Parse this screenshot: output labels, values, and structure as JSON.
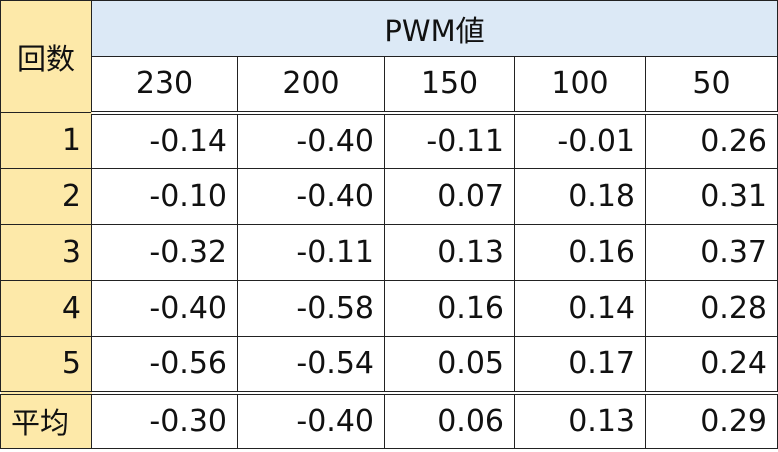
{
  "table": {
    "corner_label": "回数",
    "group_header": "PWM値",
    "columns": [
      "230",
      "200",
      "150",
      "100",
      "50"
    ],
    "rows": [
      {
        "label": "1",
        "values": [
          "-0.14",
          "-0.40",
          "-0.11",
          "-0.01",
          "0.26"
        ]
      },
      {
        "label": "2",
        "values": [
          "-0.10",
          "-0.40",
          "0.07",
          "0.18",
          "0.31"
        ]
      },
      {
        "label": "3",
        "values": [
          "-0.32",
          "-0.11",
          "0.13",
          "0.16",
          "0.37"
        ]
      },
      {
        "label": "4",
        "values": [
          "-0.40",
          "-0.58",
          "0.16",
          "0.14",
          "0.28"
        ]
      },
      {
        "label": "5",
        "values": [
          "-0.56",
          "-0.54",
          "0.05",
          "0.17",
          "0.24"
        ]
      }
    ],
    "average": {
      "label": "平均",
      "values": [
        "-0.30",
        "-0.40",
        "0.06",
        "0.13",
        "0.29"
      ]
    }
  },
  "colors": {
    "label_fill": "#fde9a9",
    "header_fill": "#dce9f6",
    "border": "#222222"
  }
}
